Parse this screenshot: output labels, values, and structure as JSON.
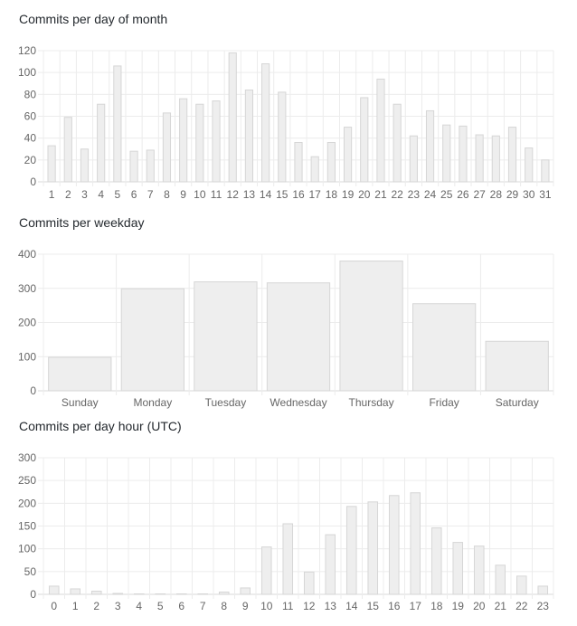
{
  "sections": [
    {
      "title": "Commits per day of month"
    },
    {
      "title": "Commits per weekday"
    },
    {
      "title": "Commits per day hour (UTC)"
    }
  ],
  "colors": {
    "bar_fill": "#eeeeee",
    "bar_stroke": "#d6d6d6",
    "grid": "#ececec",
    "tick_text": "#666666"
  },
  "chart_data": [
    {
      "type": "bar",
      "title": "Commits per day of month",
      "categories": [
        "1",
        "2",
        "3",
        "4",
        "5",
        "6",
        "7",
        "8",
        "9",
        "10",
        "11",
        "12",
        "13",
        "14",
        "15",
        "16",
        "17",
        "18",
        "19",
        "20",
        "21",
        "22",
        "23",
        "24",
        "25",
        "26",
        "27",
        "28",
        "29",
        "30",
        "31"
      ],
      "values": [
        33,
        59,
        30,
        71,
        106,
        28,
        29,
        63,
        76,
        71,
        74,
        118,
        84,
        108,
        82,
        36,
        23,
        36,
        50,
        77,
        94,
        71,
        42,
        65,
        52,
        51,
        43,
        42,
        50,
        31,
        20
      ],
      "ylim": [
        0,
        120
      ],
      "yticks": [
        0,
        20,
        40,
        60,
        80,
        100,
        120
      ],
      "grid": true,
      "xlabel": "",
      "ylabel": ""
    },
    {
      "type": "bar",
      "title": "Commits per weekday",
      "categories": [
        "Sunday",
        "Monday",
        "Tuesday",
        "Wednesday",
        "Thursday",
        "Friday",
        "Saturday"
      ],
      "values": [
        98,
        299,
        319,
        316,
        380,
        255,
        145
      ],
      "ylim": [
        0,
        400
      ],
      "yticks": [
        0,
        100,
        200,
        300,
        400
      ],
      "grid": true,
      "xlabel": "",
      "ylabel": ""
    },
    {
      "type": "bar",
      "title": "Commits per day hour (UTC)",
      "categories": [
        "0",
        "1",
        "2",
        "3",
        "4",
        "5",
        "6",
        "7",
        "8",
        "9",
        "10",
        "11",
        "12",
        "13",
        "14",
        "15",
        "16",
        "17",
        "18",
        "19",
        "20",
        "21",
        "22",
        "23"
      ],
      "values": [
        18,
        12,
        7,
        2,
        1,
        1,
        1,
        1,
        5,
        14,
        104,
        155,
        49,
        131,
        193,
        203,
        217,
        223,
        146,
        114,
        106,
        64,
        40,
        18
      ],
      "ylim": [
        0,
        300
      ],
      "yticks": [
        0,
        50,
        100,
        150,
        200,
        250,
        300
      ],
      "grid": true,
      "xlabel": "",
      "ylabel": ""
    }
  ]
}
